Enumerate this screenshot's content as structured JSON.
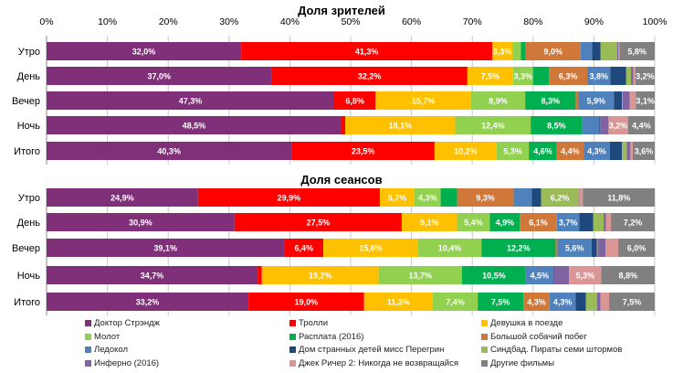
{
  "chart_data": [
    {
      "type": "bar",
      "orientation": "horizontal",
      "stacked": "percent",
      "title": "Доля зрителей",
      "categories": [
        "Утро",
        "День",
        "Вечер",
        "Ночь",
        "Итого"
      ],
      "xlim": [
        0,
        100
      ],
      "x_ticks": [
        "0%",
        "10%",
        "20%",
        "30%",
        "40%",
        "50%",
        "60%",
        "70%",
        "80%",
        "90%",
        "100%"
      ],
      "grid": true,
      "series": [
        {
          "name": "Доктор Стрэндж",
          "values": [
            32.0,
            37.0,
            47.3,
            48.5,
            40.3
          ]
        },
        {
          "name": "Тролли",
          "values": [
            41.3,
            32.2,
            6.8,
            0.6,
            23.5
          ]
        },
        {
          "name": "Девушка в поезде",
          "values": [
            3.3,
            7.5,
            15.7,
            18.1,
            10.2
          ]
        },
        {
          "name": "Молот",
          "values": [
            1.4,
            3.3,
            8.9,
            12.4,
            5.3
          ]
        },
        {
          "name": "Расплата (2016)",
          "values": [
            0.8,
            2.6,
            8.3,
            8.5,
            4.6
          ]
        },
        {
          "name": "Большой собачий побег",
          "values": [
            9.0,
            6.3,
            0.4,
            0.0,
            4.4
          ]
        },
        {
          "name": "Ледокол",
          "values": [
            1.9,
            3.8,
            5.9,
            2.8,
            4.3
          ]
        },
        {
          "name": "Дом странных детей мисс Перегрин",
          "values": [
            1.4,
            2.6,
            1.3,
            0.1,
            2.0
          ]
        },
        {
          "name": "Синдбад. Пираты семи штормов",
          "values": [
            2.7,
            0.8,
            0.1,
            0.0,
            0.8
          ]
        },
        {
          "name": "Инферно (2016)",
          "values": [
            0.2,
            0.4,
            1.2,
            1.4,
            0.6
          ]
        },
        {
          "name": "Джек Ричер 2: Никогда не возвращайся",
          "values": [
            0.2,
            0.3,
            1.0,
            3.2,
            0.4
          ]
        },
        {
          "name": "Другие фильмы",
          "values": [
            5.8,
            3.2,
            3.1,
            4.4,
            3.6
          ]
        }
      ]
    },
    {
      "type": "bar",
      "orientation": "horizontal",
      "stacked": "percent",
      "title": "Доля сеансов",
      "categories": [
        "Утро",
        "День",
        "Вечер",
        "Ночь",
        "Итого"
      ],
      "xlim": [
        0,
        100
      ],
      "grid": true,
      "series": [
        {
          "name": "Доктор Стрэндж",
          "values": [
            24.9,
            30.9,
            39.1,
            34.7,
            33.2
          ]
        },
        {
          "name": "Тролли",
          "values": [
            29.9,
            27.5,
            6.4,
            0.7,
            19.0
          ]
        },
        {
          "name": "Девушка в поезде",
          "values": [
            5.7,
            9.1,
            15.6,
            19.2,
            11.3
          ]
        },
        {
          "name": "Молот",
          "values": [
            4.3,
            5.4,
            10.4,
            13.7,
            7.4
          ]
        },
        {
          "name": "Расплата (2016)",
          "values": [
            2.7,
            4.9,
            12.2,
            10.5,
            7.5
          ]
        },
        {
          "name": "Большой собачий побег",
          "values": [
            9.3,
            6.1,
            0.3,
            0.0,
            4.3
          ]
        },
        {
          "name": "Ледокол",
          "values": [
            3.0,
            3.7,
            5.6,
            4.5,
            4.3
          ]
        },
        {
          "name": "Дом странных детей мисс Перегрин",
          "values": [
            1.5,
            2.3,
            0.9,
            0.1,
            1.7
          ]
        },
        {
          "name": "Синдбад. Пираты семи штормов",
          "values": [
            6.2,
            1.7,
            0.1,
            0.0,
            1.8
          ]
        },
        {
          "name": "Инферно (2016)",
          "values": [
            0.1,
            0.4,
            1.3,
            2.5,
            0.6
          ]
        },
        {
          "name": "Джек Ричер 2: Никогда не возвращайся",
          "values": [
            0.6,
            0.8,
            2.1,
            5.3,
            1.4
          ]
        },
        {
          "name": "Другие фильмы",
          "values": [
            11.8,
            7.2,
            6.0,
            8.8,
            7.5
          ]
        }
      ]
    }
  ],
  "legend": {
    "placement": "bottom",
    "items": [
      "Доктор Стрэндж",
      "Тролли",
      "Девушка в поезде",
      "Молот",
      "Расплата (2016)",
      "Большой собачий побег",
      "Ледокол",
      "Дом странных детей мисс Перегрин",
      "Синдбад. Пираты семи штормов",
      "Инферно (2016)",
      "Джек Ричер 2: Никогда не возвращайся",
      "Другие фильмы"
    ]
  },
  "colors": [
    "#7F3079",
    "#FF0000",
    "#FFC000",
    "#92D050",
    "#00B050",
    "#D0783A",
    "#4F81BD",
    "#1F497D",
    "#9BBB59",
    "#8064A2",
    "#D99694",
    "#808080"
  ]
}
